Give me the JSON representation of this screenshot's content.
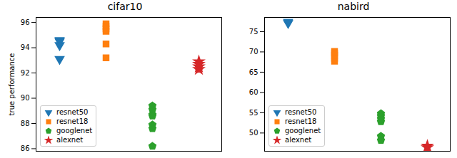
{
  "chart_data": [
    {
      "type": "scatter",
      "title": "cifar10",
      "y_label": "true performance",
      "ylim": [
        85.8,
        96.4
      ],
      "yticks": [
        86,
        88,
        90,
        92,
        94,
        96
      ],
      "tick_labels": "y",
      "legend": "lower left",
      "series": [
        {
          "name": "resnet50",
          "color": "#1f77b4",
          "marker": "triangle_down",
          "values": [
            94.6,
            94.5,
            94.2,
            93.1
          ]
        },
        {
          "name": "resnet18",
          "color": "#ff7f0e",
          "marker": "square",
          "values": [
            95.9,
            95.7,
            95.5,
            95.3,
            94.3,
            93.2
          ]
        },
        {
          "name": "googlenet",
          "color": "#2ca02c",
          "marker": "pentagon",
          "values": [
            89.4,
            89.1,
            88.7,
            88.6,
            87.9,
            87.6,
            86.2
          ]
        },
        {
          "name": "alexnet",
          "color": "#d62728",
          "marker": "star",
          "values": [
            92.9,
            92.7,
            92.5,
            92.3
          ]
        }
      ]
    },
    {
      "type": "scatter",
      "title": "nabird",
      "ylim": [
        45.5,
        78.5
      ],
      "yticks": [
        50,
        55,
        60,
        65,
        70,
        75
      ],
      "tick_labels": "y",
      "legend": "lower left",
      "series": [
        {
          "name": "resnet50",
          "color": "#1f77b4",
          "marker": "triangle_down",
          "values": [
            77.4,
            77.1
          ]
        },
        {
          "name": "resnet18",
          "color": "#ff7f0e",
          "marker": "square",
          "values": [
            70.1,
            69.7,
            69.2,
            68.4,
            67.7
          ]
        },
        {
          "name": "googlenet",
          "color": "#2ca02c",
          "marker": "pentagon",
          "values": [
            54.8,
            54.2,
            53.5,
            52.8,
            49.2,
            48.2
          ]
        },
        {
          "name": "alexnet",
          "color": "#d62728",
          "marker": "star",
          "values": [
            46.8,
            46.4
          ]
        }
      ]
    }
  ]
}
